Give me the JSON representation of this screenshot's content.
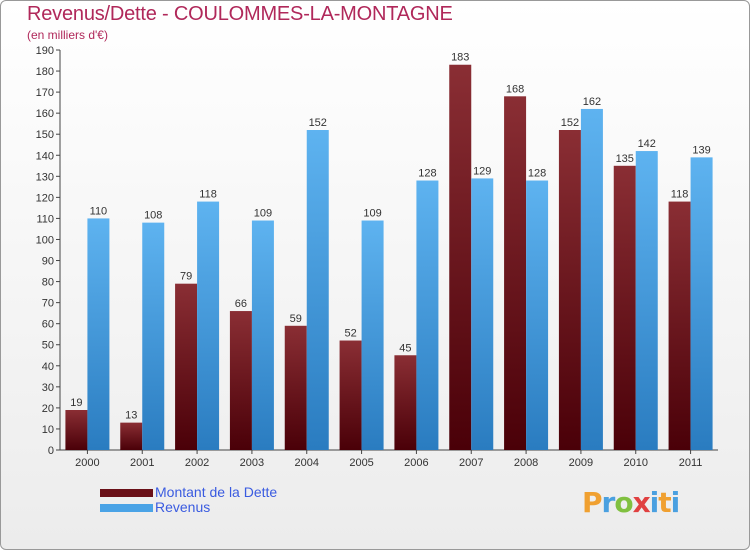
{
  "title": "Revenus/Dette - COULOMMES-LA-MONTAGNE",
  "subtitle": "(en milliers d'€)",
  "legend": {
    "items": [
      {
        "label": "Montant de la Dette",
        "color": "#7a1e26"
      },
      {
        "label": "Revenus",
        "color": "#4aa3e6"
      }
    ]
  },
  "logo": {
    "text": "Proxiti"
  },
  "chart_data": {
    "type": "bar",
    "title": "Revenus/Dette - COULOMMES-LA-MONTAGNE",
    "ylabel": "(en milliers d'€)",
    "xlabel": "",
    "ylim": [
      0,
      190
    ],
    "ytick_step": 10,
    "grid": false,
    "legend_position": "bottom-left",
    "categories": [
      "2000",
      "2001",
      "2002",
      "2003",
      "2004",
      "2005",
      "2006",
      "2007",
      "2008",
      "2009",
      "2010",
      "2011"
    ],
    "series": [
      {
        "name": "Montant de la Dette",
        "color_top": "#8a2e34",
        "color_bottom": "#4a0008",
        "values": [
          19,
          13,
          79,
          66,
          59,
          52,
          45,
          183,
          168,
          152,
          135,
          118
        ]
      },
      {
        "name": "Revenus",
        "color_top": "#5eb3f0",
        "color_bottom": "#2a7cc0",
        "values": [
          110,
          108,
          118,
          109,
          152,
          109,
          128,
          129,
          128,
          162,
          142,
          139
        ]
      }
    ]
  }
}
